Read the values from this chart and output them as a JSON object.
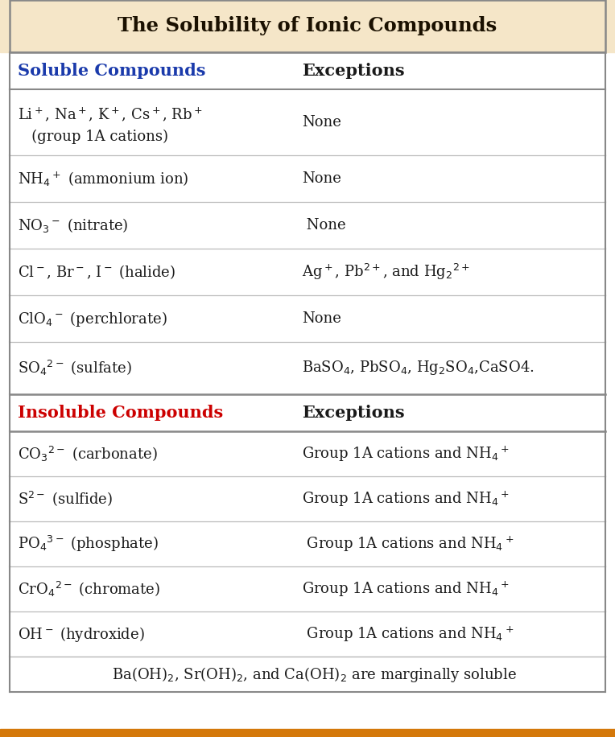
{
  "title": "The Solubility of Ionic Compounds",
  "title_bg": "#f5e6c8",
  "border_color": "#888888",
  "thin_border": "#bbbbbb",
  "orange_bar_color": "#d4780a",
  "title_color": "#1a1000",
  "blue_color": "#1a3aab",
  "red_color": "#cc0000",
  "black_color": "#1a1a1a",
  "soluble_rows": [
    {
      "compound_line1": "Li$^+$, Na$^+$, K$^+$, Cs$^+$, Rb$^+$",
      "compound_line2": "   (group 1A cations)",
      "exception": "None",
      "two_line": true
    },
    {
      "compound_line1": "NH$_4$$^+$ (ammonium ion)",
      "compound_line2": "",
      "exception": "None",
      "two_line": false
    },
    {
      "compound_line1": "NO$_3$$^-$ (nitrate)",
      "compound_line2": "",
      "exception": " None",
      "two_line": false
    },
    {
      "compound_line1": "Cl$^-$, Br$^-$, I$^-$ (halide)",
      "compound_line2": "",
      "exception": "Ag$^+$, Pb$^{2+}$, and Hg$_2$$^{2+}$",
      "two_line": false
    },
    {
      "compound_line1": "ClO$_4$$^-$ (perchlorate)",
      "compound_line2": "",
      "exception": "None",
      "two_line": false
    },
    {
      "compound_line1": "SO$_4$$^{2-}$ (sulfate)",
      "compound_line2": "",
      "exception": "BaSO$_4$, PbSO$_4$, Hg$_2$SO$_4$,CaSO4.",
      "two_line": false
    }
  ],
  "insoluble_rows": [
    {
      "compound_line1": "CO$_3$$^{2-}$ (carbonate)",
      "exception": "Group 1A cations and NH$_4$$^+$"
    },
    {
      "compound_line1": "S$^{2-}$ (sulfide)",
      "exception": "Group 1A cations and NH$_4$$^+$"
    },
    {
      "compound_line1": "PO$_4$$^{3-}$ (phosphate)",
      "exception": " Group 1A cations and NH$_4$$^+$"
    },
    {
      "compound_line1": "CrO$_4$$^{2-}$ (chromate)",
      "exception": "Group 1A cations and NH$_4$$^+$"
    },
    {
      "compound_line1": "OH$^-$ (hydroxide)",
      "exception": " Group 1A cations and NH$_4$$^+$"
    }
  ],
  "last_row": "   Ba(OH)$_2$, Sr(OH)$_2$, and Ca(OH)$_2$ are marginally soluble"
}
